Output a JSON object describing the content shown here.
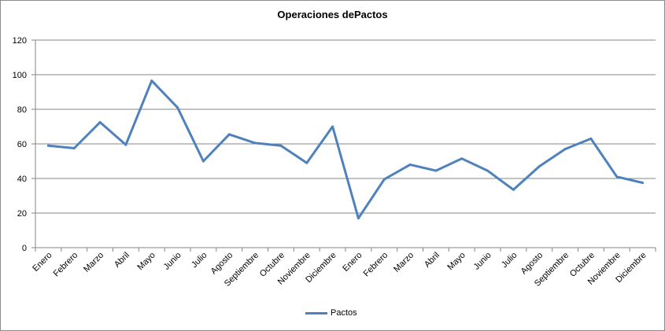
{
  "chart_data": {
    "type": "line",
    "title": "Operaciones dePactos",
    "categories": [
      "Enero",
      "Febrero",
      "Marzo",
      "Abril",
      "Mayo",
      "Junio",
      "Julio",
      "Agosto",
      "Septiembre",
      "Octubre",
      "Noviembre",
      "Diciembre",
      "Enero",
      "Febrero",
      "Marzo",
      "Abril",
      "Mayo",
      "Junio",
      "Julio",
      "Agosto",
      "Septiembre",
      "Octubre",
      "Noviembre",
      "Diciembre"
    ],
    "series": [
      {
        "name": "Pactos",
        "color": "#4f81bd",
        "values": [
          59,
          57.5,
          72.5,
          59.5,
          96.5,
          81,
          50,
          65.5,
          60.5,
          59,
          49,
          70,
          17,
          39.5,
          48,
          44.5,
          51.5,
          44.5,
          33.5,
          47,
          57,
          63,
          41,
          37.5
        ]
      }
    ],
    "ylim": [
      0,
      120
    ],
    "yticks": [
      "0",
      "20",
      "40",
      "60",
      "80",
      "100",
      "120"
    ],
    "grid": true,
    "legend": "bottom"
  }
}
